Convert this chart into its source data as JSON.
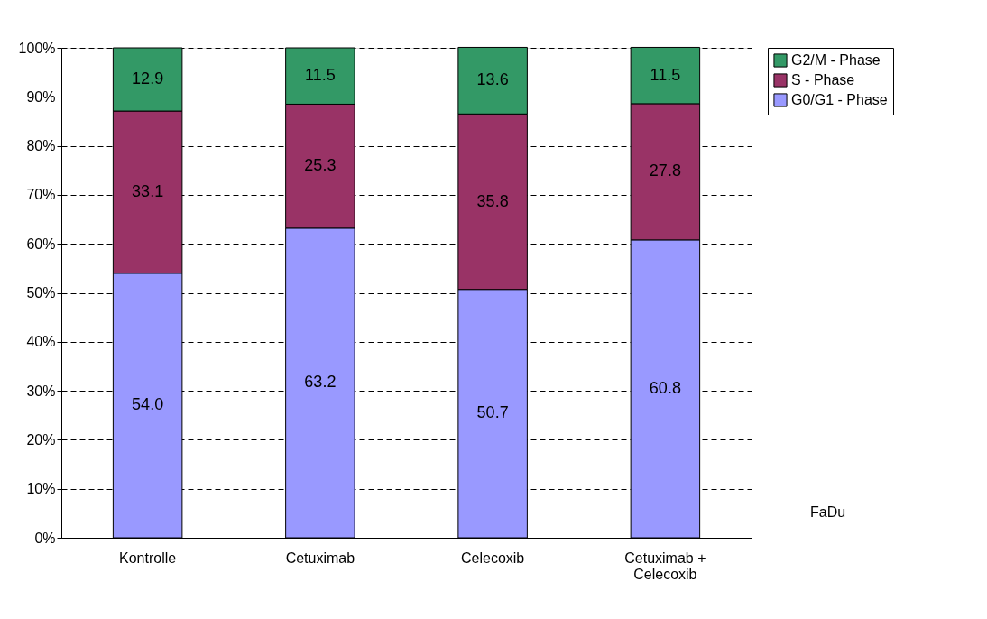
{
  "chart_data": {
    "type": "bar",
    "stacked": true,
    "categories": [
      "Kontrolle",
      "Cetuximab",
      "Celecoxib",
      "Cetuximab + Celecoxib"
    ],
    "series": [
      {
        "name": "G0/G1 - Phase",
        "color": "#9999ff",
        "values": [
          54.0,
          63.2,
          50.7,
          60.8
        ],
        "value_labels": [
          "54.0",
          "63.2",
          "50.7",
          "60.8"
        ]
      },
      {
        "name": "S - Phase",
        "color": "#993366",
        "values": [
          33.1,
          25.3,
          35.8,
          27.8
        ],
        "value_labels": [
          "33.1",
          "25.3",
          "35.8",
          "27.8"
        ]
      },
      {
        "name": "G2/M - Phase",
        "color": "#339966",
        "values": [
          12.9,
          11.5,
          13.6,
          11.5
        ],
        "value_labels": [
          "12.9",
          "11.5",
          "13.6",
          "11.5"
        ]
      }
    ],
    "ylim": [
      0,
      100
    ],
    "yticks": [
      {
        "value": 0,
        "label": "0%"
      },
      {
        "value": 10,
        "label": "10%"
      },
      {
        "value": 20,
        "label": "20%"
      },
      {
        "value": 30,
        "label": "30%"
      },
      {
        "value": 40,
        "label": "40%"
      },
      {
        "value": 50,
        "label": "50%"
      },
      {
        "value": 60,
        "label": "60%"
      },
      {
        "value": 70,
        "label": "70%"
      },
      {
        "value": 80,
        "label": "80%"
      },
      {
        "value": 90,
        "label": "90%"
      },
      {
        "value": 100,
        "label": "100%"
      }
    ],
    "grid": "y",
    "legend": "top right",
    "annotations": [
      "FaDu"
    ]
  }
}
